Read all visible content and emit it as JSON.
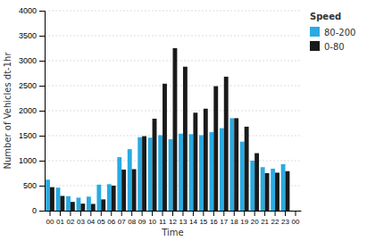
{
  "chart_data": {
    "type": "bar",
    "categories": [
      "00",
      "01",
      "02",
      "03",
      "04",
      "05",
      "06",
      "07",
      "08",
      "09",
      "10",
      "11",
      "12",
      "13",
      "14",
      "15",
      "16",
      "17",
      "18",
      "19",
      "20",
      "21",
      "22",
      "23",
      "00"
    ],
    "series": [
      {
        "name": "80-200",
        "color": "#29ABE2",
        "values": [
          620,
          460,
          290,
          260,
          280,
          520,
          530,
          1070,
          1230,
          1470,
          1460,
          1510,
          1430,
          1540,
          1530,
          1510,
          1570,
          1650,
          1850,
          1380,
          1000,
          870,
          840,
          930,
          0
        ]
      },
      {
        "name": "0-80",
        "color": "#1a1a1a",
        "values": [
          470,
          295,
          175,
          140,
          135,
          225,
          500,
          820,
          830,
          1490,
          1840,
          2540,
          3250,
          2880,
          1960,
          2040,
          2490,
          2680,
          1850,
          1680,
          1150,
          750,
          760,
          790,
          0
        ]
      }
    ],
    "x_label": "Time",
    "y_label": "Number of Vehicles dt-1hr",
    "legend_title": "Speed",
    "ylim": [
      0,
      4000
    ],
    "yticks": [
      0,
      500,
      1000,
      1500,
      2000,
      2500,
      3000,
      3500,
      4000
    ],
    "grid": true,
    "legend": "right"
  }
}
